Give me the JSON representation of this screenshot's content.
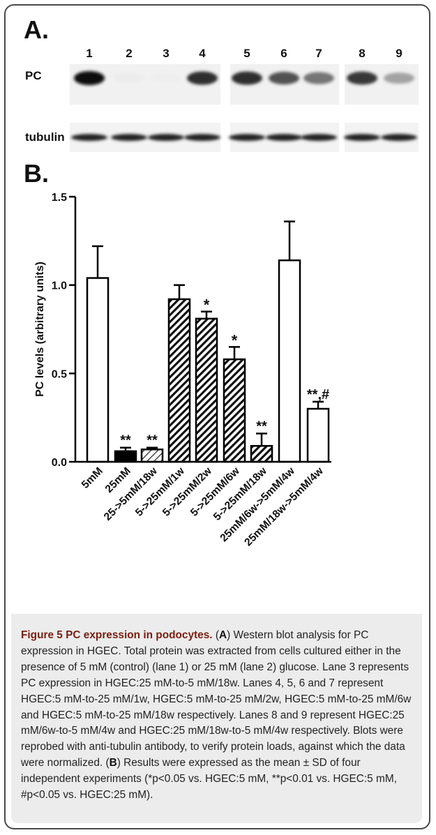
{
  "figure": {
    "panel_a_label": "A.",
    "panel_b_label": "B.",
    "blot": {
      "lane_numbers": [
        "1",
        "2",
        "3",
        "4",
        "5",
        "6",
        "7",
        "8",
        "9"
      ],
      "row_labels": [
        "PC",
        "tubulin"
      ],
      "pc_band_intensity": [
        1.0,
        0.04,
        0.03,
        0.85,
        0.85,
        0.7,
        0.55,
        0.8,
        0.35
      ],
      "tubulin_band_intensity": [
        0.9,
        0.9,
        0.9,
        0.9,
        0.9,
        0.9,
        0.9,
        0.9,
        0.9
      ]
    }
  },
  "chart_data": {
    "type": "bar",
    "ylabel": "PC levels (arbitrary units)",
    "ylim": [
      0,
      1.5
    ],
    "yticks": [
      "0.0",
      "0.5",
      "1.0",
      "1.5"
    ],
    "ytick_values": [
      0,
      0.5,
      1.0,
      1.5
    ],
    "categories": [
      "5mM",
      "25mM",
      "25->5mM/18w",
      "5->25mM/1w",
      "5->25mM/2w",
      "5->25mM/6w",
      "5->25mM/18w",
      "25mM/6w->5mM/4w",
      "25mM/18w->5mM/4w"
    ],
    "values": [
      1.04,
      0.06,
      0.07,
      0.92,
      0.81,
      0.58,
      0.09,
      1.14,
      0.3
    ],
    "errors": [
      0.18,
      0.02,
      0.01,
      0.08,
      0.04,
      0.07,
      0.07,
      0.22,
      0.04
    ],
    "fill_styles": [
      "white",
      "black",
      "light-hatch",
      "dense-hatch",
      "dense-hatch",
      "dense-hatch",
      "dense-hatch",
      "white",
      "white"
    ],
    "annotations": [
      "",
      "**",
      "**",
      "",
      "*",
      "*",
      "**",
      "",
      "**,#"
    ],
    "colors": {
      "bar_edge": "#000000",
      "fill_black": "#000000",
      "fill_white": "#ffffff"
    }
  },
  "caption": {
    "title": "Figure 5 PC expression in podocytes.",
    "part1_open": " (",
    "letter_a": "A",
    "part1": ") Western blot analysis for PC expression in HGEC. Total protein was extracted from cells cultured either in the presence of 5 mM (control) (lane 1) or 25 mM (lane 2) glucose. Lane 3 represents PC expression in HGEC:25 mM-to-5 mM/18w. Lanes 4, 5, 6 and 7 represent HGEC:5 mM-to-25 mM/1w, HGEC:5 mM-to-25 mM/2w, HGEC:5 mM-to-25 mM/6w and HGEC:5 mM-to-25 mM/18w respectively. Lanes 8 and 9 represent HGEC:25 mM/6w-to-5 mM/4w and HGEC:25 mM/18w-to-5 mM/4w respectively. Blots were reprobed with anti-tubulin antibody, to verify protein loads, against which the data were normalized. (",
    "letter_b": "B",
    "part2": ") Results were expressed as the mean ± SD of four independent experiments (*p<0.05 vs. HGEC:5 mM, **p<0.01 vs. HGEC:5 mM, #p<0.05 vs. HGEC:25 mM)."
  }
}
